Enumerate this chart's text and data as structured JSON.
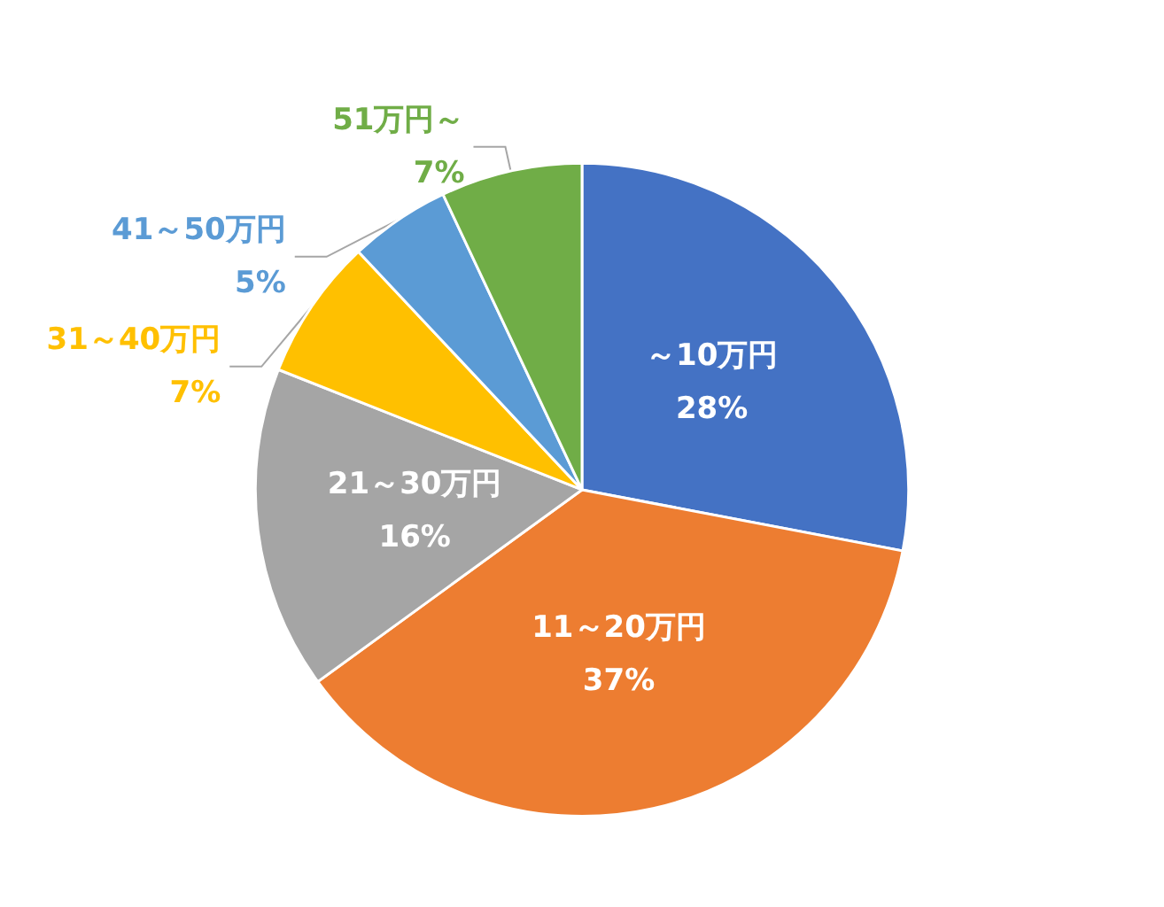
{
  "chart_data": {
    "type": "pie",
    "categories": [
      "～10万円",
      "11～20万円",
      "21～30万円",
      "31～40万円",
      "41～50万円",
      "51万円～"
    ],
    "values": [
      28,
      37,
      16,
      7,
      5,
      7
    ],
    "value_labels": [
      "28%",
      "37%",
      "16%",
      "7%",
      "5%",
      "7%"
    ],
    "colors": [
      "#4472c4",
      "#ed7d31",
      "#a5a5a5",
      "#ffc000",
      "#5b9bd5",
      "#70ad47"
    ],
    "legend": false
  }
}
